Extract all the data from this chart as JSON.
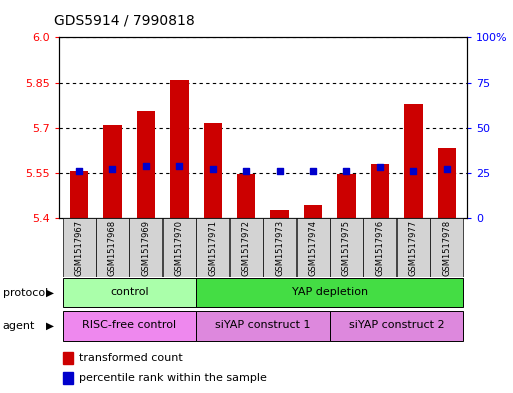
{
  "title": "GDS5914 / 7990818",
  "samples": [
    "GSM1517967",
    "GSM1517968",
    "GSM1517969",
    "GSM1517970",
    "GSM1517971",
    "GSM1517972",
    "GSM1517973",
    "GSM1517974",
    "GSM1517975",
    "GSM1517976",
    "GSM1517977",
    "GSM1517978"
  ],
  "transformed_count": [
    5.555,
    5.71,
    5.755,
    5.858,
    5.715,
    5.548,
    5.428,
    5.443,
    5.545,
    5.578,
    5.778,
    5.633
  ],
  "percentile_rank": [
    26,
    27,
    29,
    29,
    27,
    26,
    26,
    26,
    26,
    28,
    26,
    27
  ],
  "ymin": 5.4,
  "ymax": 6.0,
  "yticks": [
    5.4,
    5.55,
    5.7,
    5.85,
    6.0
  ],
  "yright_min": 0,
  "yright_max": 100,
  "yright_ticks": [
    0,
    25,
    50,
    75,
    100
  ],
  "bar_color": "#cc0000",
  "marker_color": "#0000cc",
  "protocol_color_control": "#aaffaa",
  "protocol_color_yap": "#44dd44",
  "legend_items": [
    "transformed count",
    "percentile rank within the sample"
  ],
  "bar_width": 0.55,
  "title_fontsize": 10,
  "bg_color": "#ffffff"
}
